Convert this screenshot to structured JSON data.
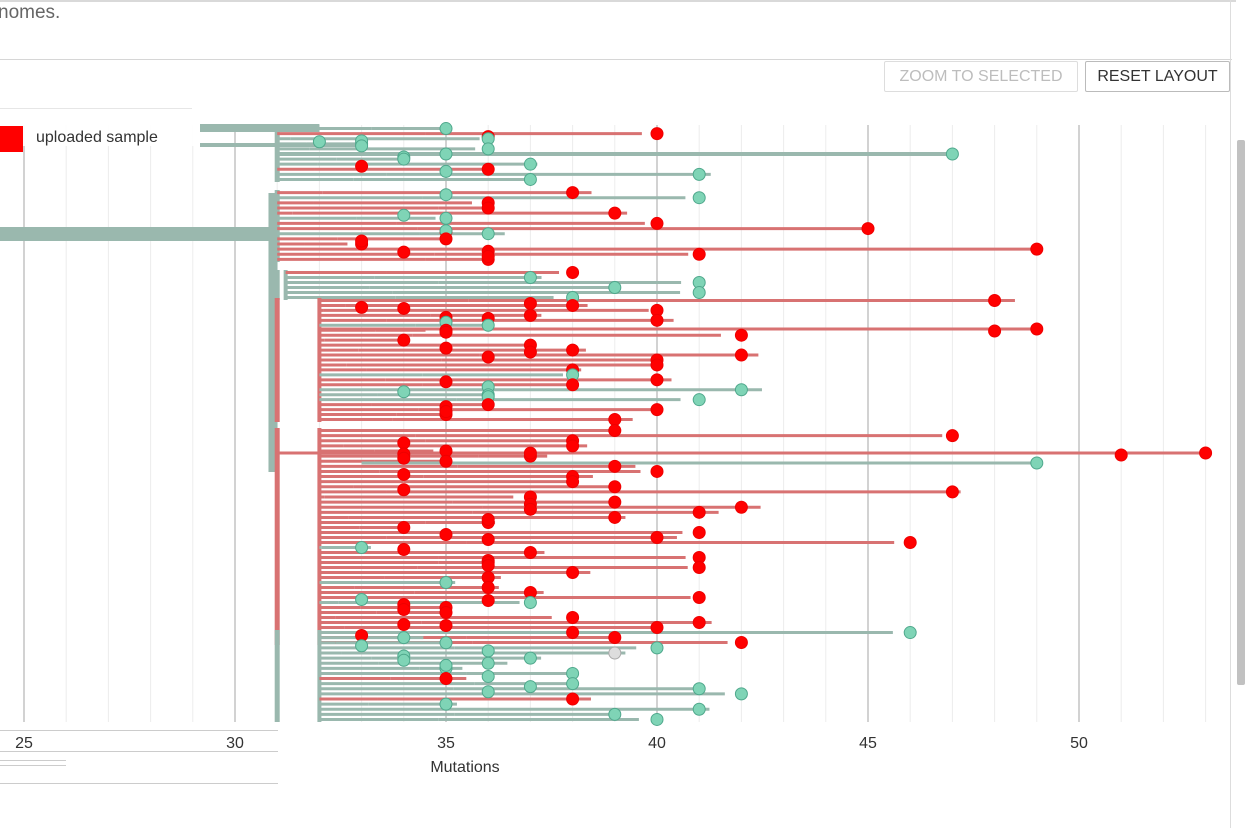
{
  "header": {
    "intro_text": "nomes."
  },
  "toolbar": {
    "zoom_label": "ZOOM TO SELECTED",
    "reset_label": "RESET LAYOUT"
  },
  "legend": {
    "label": "uploaded sample",
    "swatch_color": "#ff0000"
  },
  "axis": {
    "ticks": [
      "25",
      "30",
      "35",
      "40",
      "45",
      "50"
    ],
    "title": "Mutations"
  },
  "colors": {
    "reference_branch": "#9ab8ae",
    "uploaded_branch": "#d87272",
    "reference_node": "#7fd4b6",
    "uploaded_node": "#ff0000",
    "unknown_node": "#dddddd"
  },
  "tree": {
    "description": "phylogenetic tree",
    "node_types": [
      "reference sample",
      "uploaded sample"
    ]
  }
}
